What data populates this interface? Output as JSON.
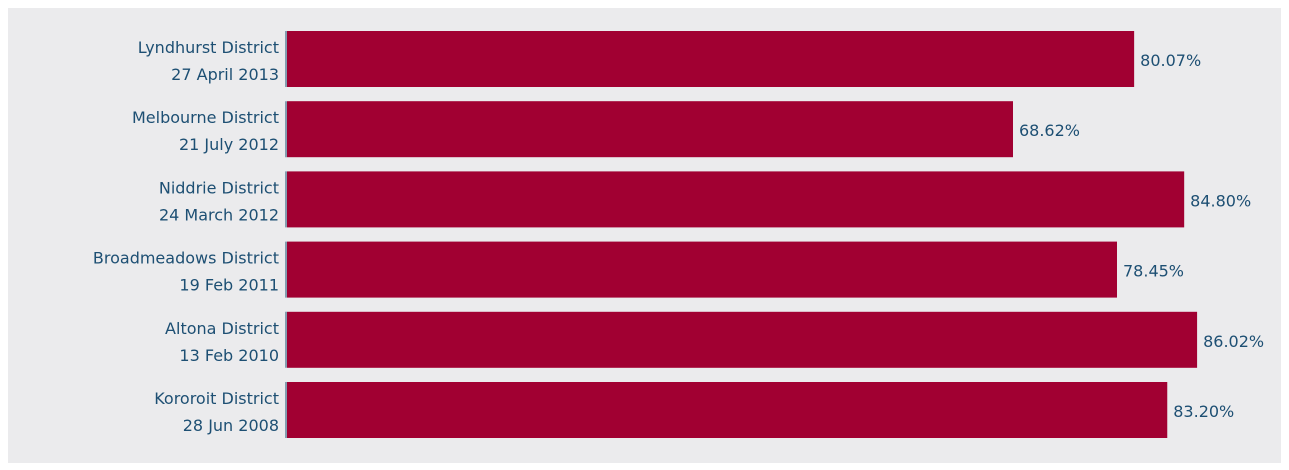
{
  "colors": {
    "background": "#ebebed",
    "bar": "#a10032",
    "text": "#1d4f73"
  },
  "chart_data": {
    "type": "bar",
    "orientation": "horizontal",
    "categories": [
      [
        "Lyndhurst District",
        "27 April 2013"
      ],
      [
        "Melbourne District",
        "21 July 2012"
      ],
      [
        "Niddrie District",
        "24 March 2012"
      ],
      [
        "Broadmeadows District",
        "19 Feb 2011"
      ],
      [
        "Altona District",
        "13 Feb 2010"
      ],
      [
        "Kororoit District",
        "28 Jun 2008"
      ]
    ],
    "values": [
      80.07,
      68.62,
      84.8,
      78.45,
      86.02,
      83.2
    ],
    "value_labels": [
      "80.07%",
      "68.62%",
      "84.80%",
      "78.45%",
      "86.02%",
      "83.20%"
    ],
    "unit": "%",
    "xlim": [
      0,
      100
    ],
    "grid": false,
    "legend": "none",
    "title": "",
    "xlabel": "",
    "ylabel": ""
  }
}
